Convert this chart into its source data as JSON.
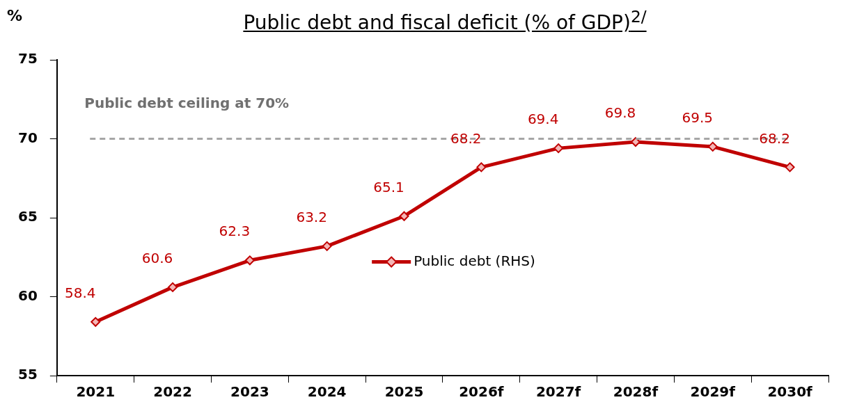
{
  "chart_data": {
    "type": "line",
    "title": "Public debt and fiscal deficit (% of GDP)$^{2/}$",
    "ylabel": "%",
    "categories": [
      "2021",
      "2022",
      "2023",
      "2024",
      "2025",
      "2026f",
      "2027f",
      "2028f",
      "2029f",
      "2030f"
    ],
    "series": [
      {
        "name": "Public debt (RHS)",
        "color": "#c00000",
        "values": [
          58.4,
          60.6,
          62.3,
          63.2,
          65.1,
          68.2,
          69.4,
          69.8,
          69.5,
          68.2
        ]
      }
    ],
    "ylim": [
      55,
      75
    ],
    "yticks": [
      55,
      60,
      65,
      70,
      75
    ],
    "ref_lines": [
      {
        "axis": "y",
        "value": 70,
        "label": "Public debt ceiling at 70%",
        "color": "#a6a6a6",
        "line_style": "dashed"
      }
    ],
    "data_labels": true,
    "grid": false,
    "legend": "center",
    "marker": "diamond",
    "line_style": "solid"
  }
}
